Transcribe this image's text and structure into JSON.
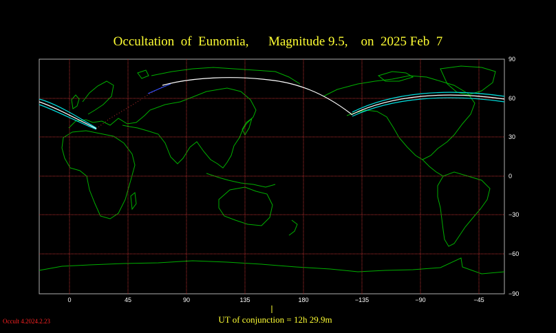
{
  "title": "Occultation  of  Eunomia,      Magnitude 9.5,    on  2025 Feb  7",
  "ut_label": "UT of conjunction = 12h 29.9m",
  "version_label": "Occult 4.2024.2.23",
  "longitude_labels": [
    "0",
    "45",
    "90",
    "135",
    "180",
    "−135",
    "−90",
    "−45"
  ],
  "latitude_labels": [
    "90",
    "60",
    "30",
    "0",
    "−30",
    "−60",
    "−90"
  ],
  "colors": {
    "background": "#000000",
    "grid": "#c03030",
    "coastline": "#00b000",
    "central_line": "#ffffff",
    "path_limits": "#00e0e0",
    "text": "#ffff33",
    "version": "#ff2222"
  }
}
